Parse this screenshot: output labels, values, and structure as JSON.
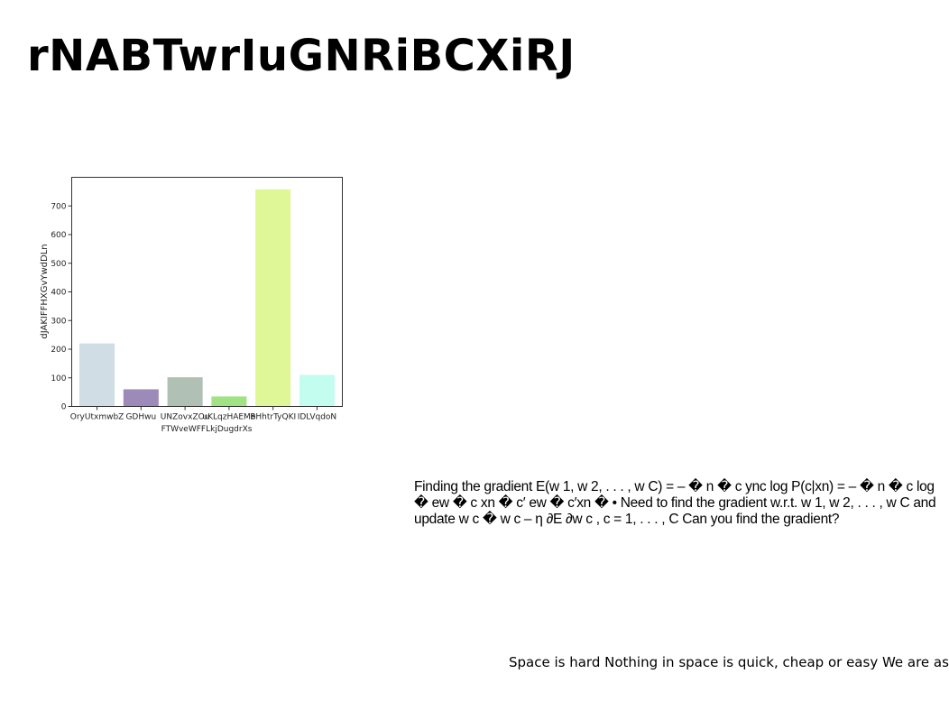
{
  "page": {
    "title": "rNABTwrIuGNRiBCXiRJ",
    "paragraph": "Finding the gradient E(w 1, w 2, . . . , w C) = – � n � c ync log P(c|xn) = – � n � c log � ew � c xn � c′ ew � c′xn � • Need to find the gradient w.r.t. w 1, w 2, . . . , w C and update w c � w c – η ∂E ∂w c , c = 1, . . . , C Can you find the gradient?",
    "footer": "Space is hard Nothing in space is quick, cheap or easy We are as"
  },
  "chart_data": {
    "type": "bar",
    "categories": [
      "OryUtxmwbZ",
      "GDHwu",
      "UNZovxZOu",
      "uKLqzHAEMe",
      "BHhtrTyQKI",
      "IDLVqdoN"
    ],
    "values": [
      220,
      60,
      102,
      35,
      758,
      110
    ],
    "colors": [
      "#d0dde4",
      "#9c8bb9",
      "#b1c0b4",
      "#a1e285",
      "#e0f797",
      "#c2fdef"
    ],
    "xlabel": "FTWveWFFLkjDugdrXs",
    "ylabel": "dJAKIFFHXGvYwdDLn",
    "ylim": [
      0,
      800
    ],
    "yticks": [
      0,
      100,
      200,
      300,
      400,
      500,
      600,
      700
    ],
    "grid": false
  }
}
